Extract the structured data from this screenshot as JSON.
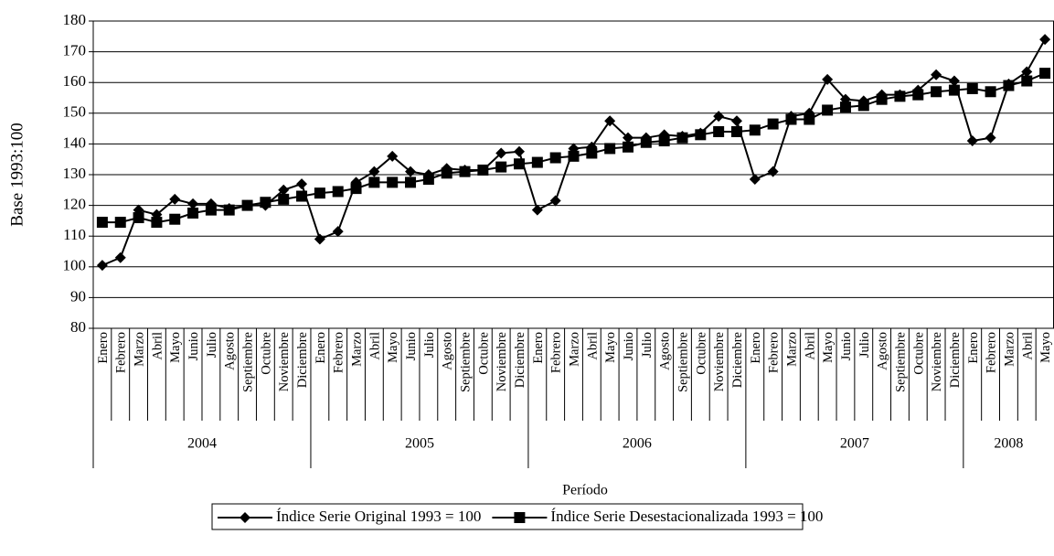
{
  "chart_data": {
    "type": "line",
    "x_label": "Período",
    "y_label": "Base 1993:100",
    "category_groups": [
      {
        "label": "2004",
        "categories": [
          "Enero",
          "Febrero",
          "Marzo",
          "Abril",
          "Mayo",
          "Junio",
          "Julio",
          "Agosto",
          "Septiembre",
          "Octubre",
          "Noviembre",
          "Diciembre"
        ]
      },
      {
        "label": "2005",
        "categories": [
          "Enero",
          "Febrero",
          "Marzo",
          "Abril",
          "Mayo",
          "Junio",
          "Julio",
          "Agosto",
          "Septiembre",
          "Octubre",
          "Noviembre",
          "Diciembre"
        ]
      },
      {
        "label": "2006",
        "categories": [
          "Enero",
          "Febrero",
          "Marzo",
          "Abril",
          "Mayo",
          "Junio",
          "Julio",
          "Agosto",
          "Septiembre",
          "Octubre",
          "Noviembre",
          "Diciembre"
        ]
      },
      {
        "label": "2007",
        "categories": [
          "Enero",
          "Febrero",
          "Marzo",
          "Abril",
          "Mayo",
          "Junio",
          "Julio",
          "Agosto",
          "Septiembre",
          "Octubre",
          "Noviembre",
          "Diciembre"
        ]
      },
      {
        "label": "2008",
        "categories": [
          "Enero",
          "Febrero",
          "Marzo",
          "Abril",
          "Mayo"
        ]
      }
    ],
    "series": [
      {
        "name": "Índice Serie Original 1993 = 100",
        "color": "#000000",
        "marker": "diamond",
        "values": [
          100.5,
          103,
          118.5,
          117,
          122,
          120.5,
          120.5,
          119,
          120,
          120,
          125,
          127,
          109,
          111.5,
          127.5,
          131,
          136,
          131,
          130,
          132,
          131.5,
          131.5,
          137,
          137.5,
          118.5,
          121.5,
          138.5,
          139,
          147.5,
          142,
          142,
          143,
          142.5,
          143.5,
          149,
          147.5,
          128.5,
          131,
          149,
          150,
          161,
          154.5,
          154,
          156,
          156,
          157.5,
          162.5,
          160.5,
          141,
          142,
          159.5,
          163.5,
          174
        ]
      },
      {
        "name": "Índice Serie Desestacionalizada 1993 = 100",
        "color": "#000000",
        "marker": "square",
        "values": [
          114.5,
          114.5,
          116,
          114.5,
          115.5,
          117.5,
          118.5,
          118.5,
          120,
          121,
          122,
          123,
          124,
          124.5,
          125.5,
          127.5,
          127.5,
          127.5,
          128.5,
          130.5,
          131,
          131.5,
          132.5,
          133.5,
          134,
          135.5,
          136,
          137,
          138.5,
          139,
          140.5,
          141,
          142,
          143,
          144,
          144,
          144.5,
          146.5,
          148,
          148,
          151,
          152,
          152.5,
          154.5,
          155.5,
          156,
          157,
          157.5,
          158,
          157,
          159,
          160.5,
          163
        ]
      }
    ],
    "ylim": [
      80,
      180
    ],
    "yticks": [
      80,
      90,
      100,
      110,
      120,
      130,
      140,
      150,
      160,
      170,
      180
    ],
    "grid": true,
    "legend": "bottom"
  }
}
